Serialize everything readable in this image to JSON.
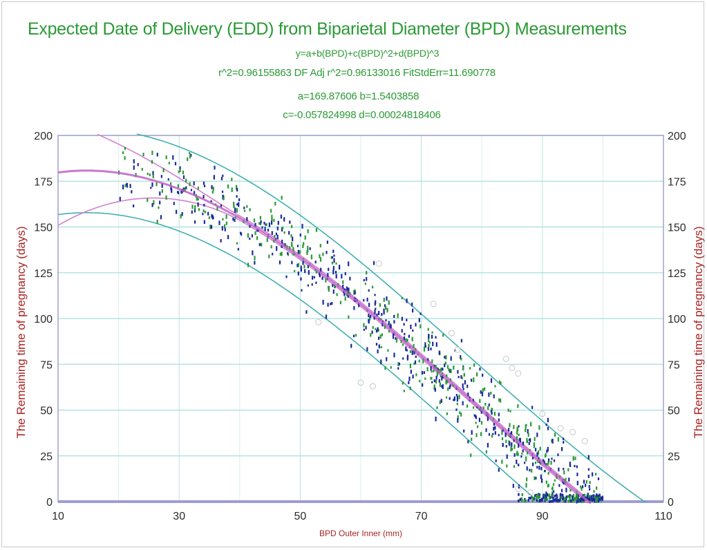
{
  "chart_data": {
    "type": "scatter",
    "title": "Expected Date of Delivery (EDD) from Biparietal Diameter (BPD)    Measurements",
    "equation": "y=a+b(BPD)+c(BPD)^2+d(BPD)^3",
    "stats": "r^2=0.96155863  DF Adj r^2=0.96133016   FitStdErr=11.690778",
    "coef_ab": "a=169.87606 b=1.5403858",
    "coef_cd": "c=-0.057824998 d=0.00024818406",
    "xlabel": "BPD Outer Inner (mm)",
    "ylabel": "The Remaining time of pregnancy (days)",
    "y2label": "The Remaining time of pregnancy (days)",
    "xlim": [
      10,
      110
    ],
    "ylim": [
      0,
      200
    ],
    "xticks": [
      "10",
      "30",
      "50",
      "70",
      "90",
      "110"
    ],
    "yticks": [
      "0",
      "25",
      "50",
      "75",
      "100",
      "125",
      "150",
      "175",
      "200"
    ],
    "grid": true,
    "coefficients": {
      "a": 169.87606,
      "b": 1.5403858,
      "c": -0.057824998,
      "d": 0.00024818406
    },
    "fit_std_err": 11.690778,
    "series": [
      {
        "role": "fit",
        "color": "#c060c8"
      },
      {
        "role": "confidence-band",
        "color": "#d080d0"
      },
      {
        "role": "prediction-band",
        "color": "#40b0b0"
      },
      {
        "role": "observations-a",
        "color": "#1a2a9a"
      },
      {
        "role": "observations-b",
        "color": "#2a9a35"
      }
    ]
  }
}
